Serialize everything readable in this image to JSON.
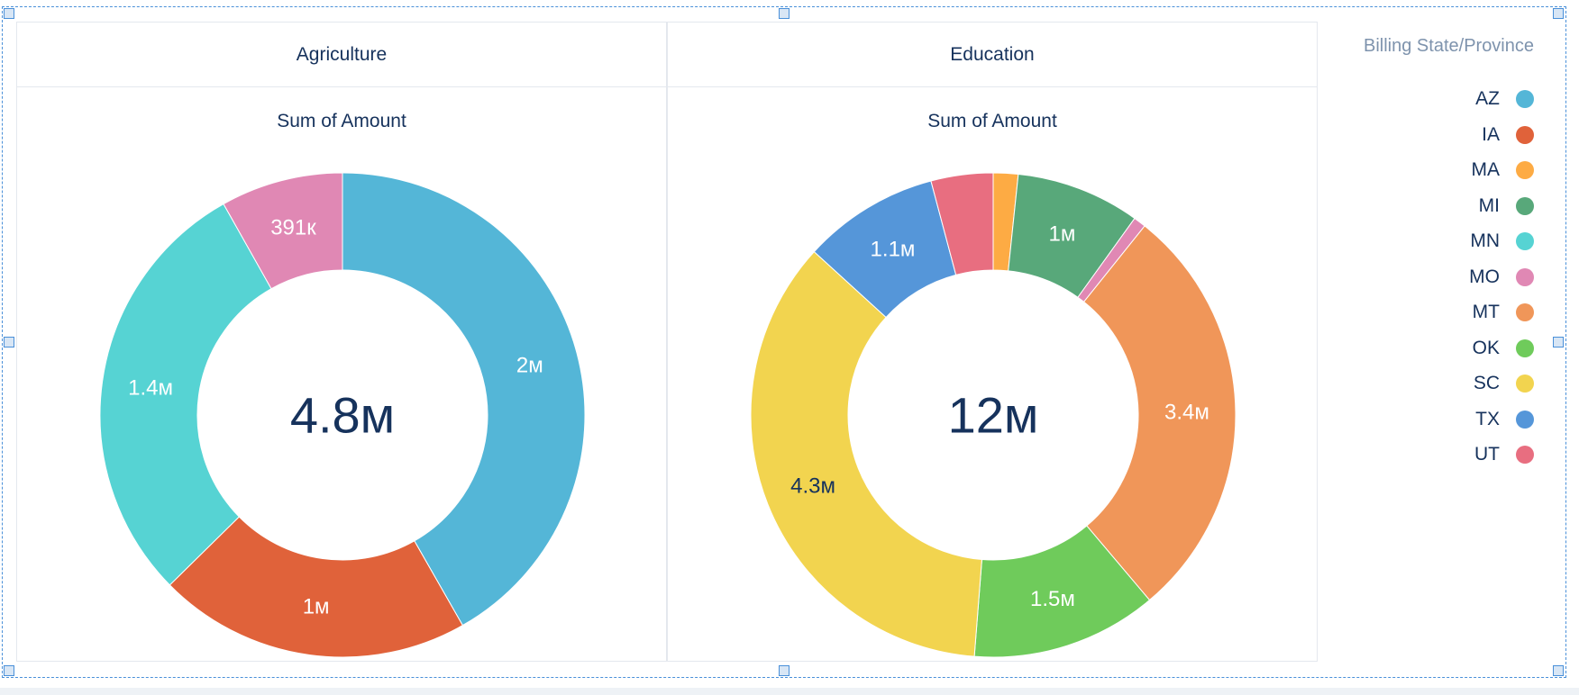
{
  "legend": {
    "title": "Billing State/Province",
    "items": [
      {
        "label": "AZ",
        "color": "#54b6d7"
      },
      {
        "label": "IA",
        "color": "#e0623a"
      },
      {
        "label": "MA",
        "color": "#fdab44"
      },
      {
        "label": "MI",
        "color": "#58a87a"
      },
      {
        "label": "MN",
        "color": "#56d3d3"
      },
      {
        "label": "MO",
        "color": "#e088b4"
      },
      {
        "label": "MT",
        "color": "#f09659"
      },
      {
        "label": "OK",
        "color": "#6fcb5b"
      },
      {
        "label": "SC",
        "color": "#f2d44f"
      },
      {
        "label": "TX",
        "color": "#5596d9"
      },
      {
        "label": "UT",
        "color": "#e86e80"
      }
    ]
  },
  "chart_data": [
    {
      "type": "donut",
      "title": "Agriculture",
      "measure": "Sum of Amount",
      "total_label": "4.8м",
      "slices": [
        {
          "category": "AZ",
          "value": 2000000,
          "label": "2м"
        },
        {
          "category": "IA",
          "value": 1000000,
          "label": "1м"
        },
        {
          "category": "MN",
          "value": 1400000,
          "label": "1.4м"
        },
        {
          "category": "MO",
          "value": 391000,
          "label": "391к"
        }
      ]
    },
    {
      "type": "donut",
      "title": "Education",
      "measure": "Sum of Amount",
      "total_label": "12м",
      "slices": [
        {
          "category": "MA",
          "value": 200000,
          "label": ""
        },
        {
          "category": "MI",
          "value": 1000000,
          "label": "1м"
        },
        {
          "category": "MO",
          "value": 100000,
          "label": ""
        },
        {
          "category": "MT",
          "value": 3400000,
          "label": "3.4м"
        },
        {
          "category": "OK",
          "value": 1500000,
          "label": "1.5м"
        },
        {
          "category": "SC",
          "value": 4300000,
          "label": "4.3м"
        },
        {
          "category": "TX",
          "value": 1100000,
          "label": "1.1м"
        },
        {
          "category": "UT",
          "value": 500000,
          "label": ""
        }
      ]
    }
  ]
}
